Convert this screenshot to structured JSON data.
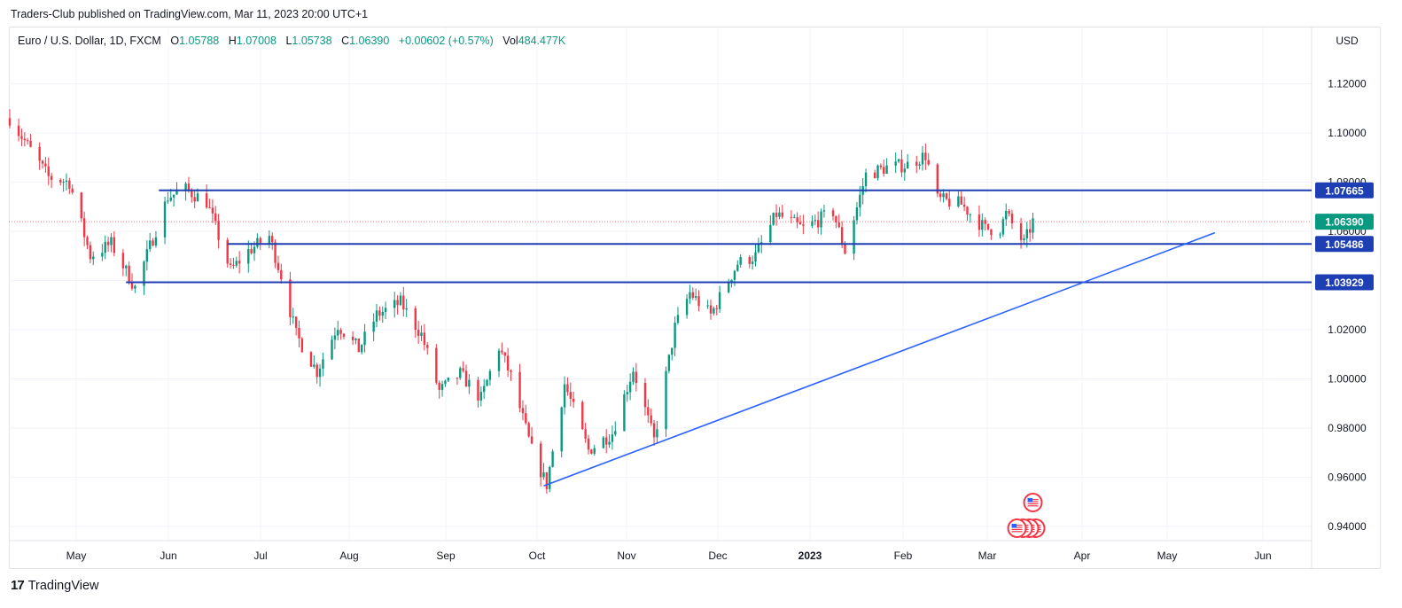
{
  "header": {
    "published": "Traders-Club published on TradingView.com, Mar 11, 2023 20:00 UTC+1"
  },
  "legend": {
    "symbol": "Euro / U.S. Dollar, 1D, FXCM",
    "o_label": "O",
    "o": "1.05788",
    "h_label": "H",
    "h": "1.07008",
    "l_label": "L",
    "l": "1.05738",
    "c_label": "C",
    "c": "1.06390",
    "change": "+0.00602 (+0.57%)",
    "vol_label": "Vol",
    "vol": "484.477K"
  },
  "footer": {
    "logo_mark": "17",
    "logo_text": "TradingView"
  },
  "colors": {
    "up": "#089981",
    "down": "#f23645",
    "level": "#1e3fb4",
    "trend": "#2962ff",
    "grid": "#f0f3fa",
    "last": "#089981"
  },
  "chart_data": {
    "type": "candlestick",
    "currency": "USD",
    "y_ticks": [
      "1.12000",
      "1.10000",
      "1.08000",
      "1.06000",
      "1.04000",
      "1.02000",
      "1.00000",
      "0.98000",
      "0.96000",
      "0.94000"
    ],
    "x_ticks": [
      "May",
      "Jun",
      "Jul",
      "Aug",
      "Sep",
      "Oct",
      "Nov",
      "Dec",
      "2023",
      "Feb",
      "Mar",
      "Apr",
      "May",
      "Jun"
    ],
    "ylim": [
      0.933,
      1.136
    ],
    "last_price": {
      "value": 1.0639,
      "label": "1.06390"
    },
    "horizontal_levels": [
      {
        "value": 1.07665,
        "label": "1.07665",
        "start": "2022-05-21"
      },
      {
        "value": 1.05486,
        "label": "1.05486",
        "start": "2022-06-13"
      },
      {
        "value": 1.03929,
        "label": "1.03929",
        "start": "2022-05-10"
      }
    ],
    "trendline": {
      "from": {
        "date": "2022-09-27",
        "value": 0.9565
      },
      "to": {
        "date": "2023-05-10",
        "value": 1.0594
      }
    },
    "event_icons": {
      "date": "2023-03-10",
      "count_upper": 1,
      "count_lower": 4,
      "icon": "us-flag-icon"
    },
    "path": [
      [
        "2022-04-01",
        1.106
      ],
      [
        "2022-04-14",
        1.082
      ],
      [
        "2022-04-21",
        1.08
      ],
      [
        "2022-04-28",
        1.05
      ],
      [
        "2022-05-05",
        1.055
      ],
      [
        "2022-05-13",
        1.037
      ],
      [
        "2022-05-24",
        1.074
      ],
      [
        "2022-05-30",
        1.077
      ],
      [
        "2022-06-06",
        1.072
      ],
      [
        "2022-06-14",
        1.044
      ],
      [
        "2022-06-20",
        1.052
      ],
      [
        "2022-06-27",
        1.058
      ],
      [
        "2022-07-01",
        1.042
      ],
      [
        "2022-07-06",
        1.018
      ],
      [
        "2022-07-13",
        1.003
      ],
      [
        "2022-07-20",
        1.022
      ],
      [
        "2022-07-27",
        1.012
      ],
      [
        "2022-08-02",
        1.026
      ],
      [
        "2022-08-10",
        1.031
      ],
      [
        "2022-08-17",
        1.018
      ],
      [
        "2022-08-23",
        0.995
      ],
      [
        "2022-08-30",
        1.002
      ],
      [
        "2022-09-06",
        0.992
      ],
      [
        "2022-09-12",
        1.013
      ],
      [
        "2022-09-16",
        1.001
      ],
      [
        "2022-09-23",
        0.971
      ],
      [
        "2022-09-28",
        0.957
      ],
      [
        "2022-10-04",
        0.998
      ],
      [
        "2022-10-12",
        0.971
      ],
      [
        "2022-10-20",
        0.978
      ],
      [
        "2022-10-27",
        1.004
      ],
      [
        "2022-11-03",
        0.975
      ],
      [
        "2022-11-10",
        1.021
      ],
      [
        "2022-11-15",
        1.035
      ],
      [
        "2022-11-22",
        1.026
      ],
      [
        "2022-12-01",
        1.047
      ],
      [
        "2022-12-07",
        1.05
      ],
      [
        "2022-12-14",
        1.067
      ],
      [
        "2022-12-23",
        1.061
      ],
      [
        "2023-01-02",
        1.068
      ],
      [
        "2023-01-06",
        1.052
      ],
      [
        "2023-01-13",
        1.083
      ],
      [
        "2023-01-20",
        1.086
      ],
      [
        "2023-01-27",
        1.087
      ],
      [
        "2023-02-02",
        1.091
      ],
      [
        "2023-02-06",
        1.073
      ],
      [
        "2023-02-14",
        1.071
      ],
      [
        "2023-02-22",
        1.061
      ],
      [
        "2023-02-27",
        1.061
      ],
      [
        "2023-03-01",
        1.067
      ],
      [
        "2023-03-07",
        1.055
      ],
      [
        "2023-03-10",
        1.064
      ]
    ]
  }
}
